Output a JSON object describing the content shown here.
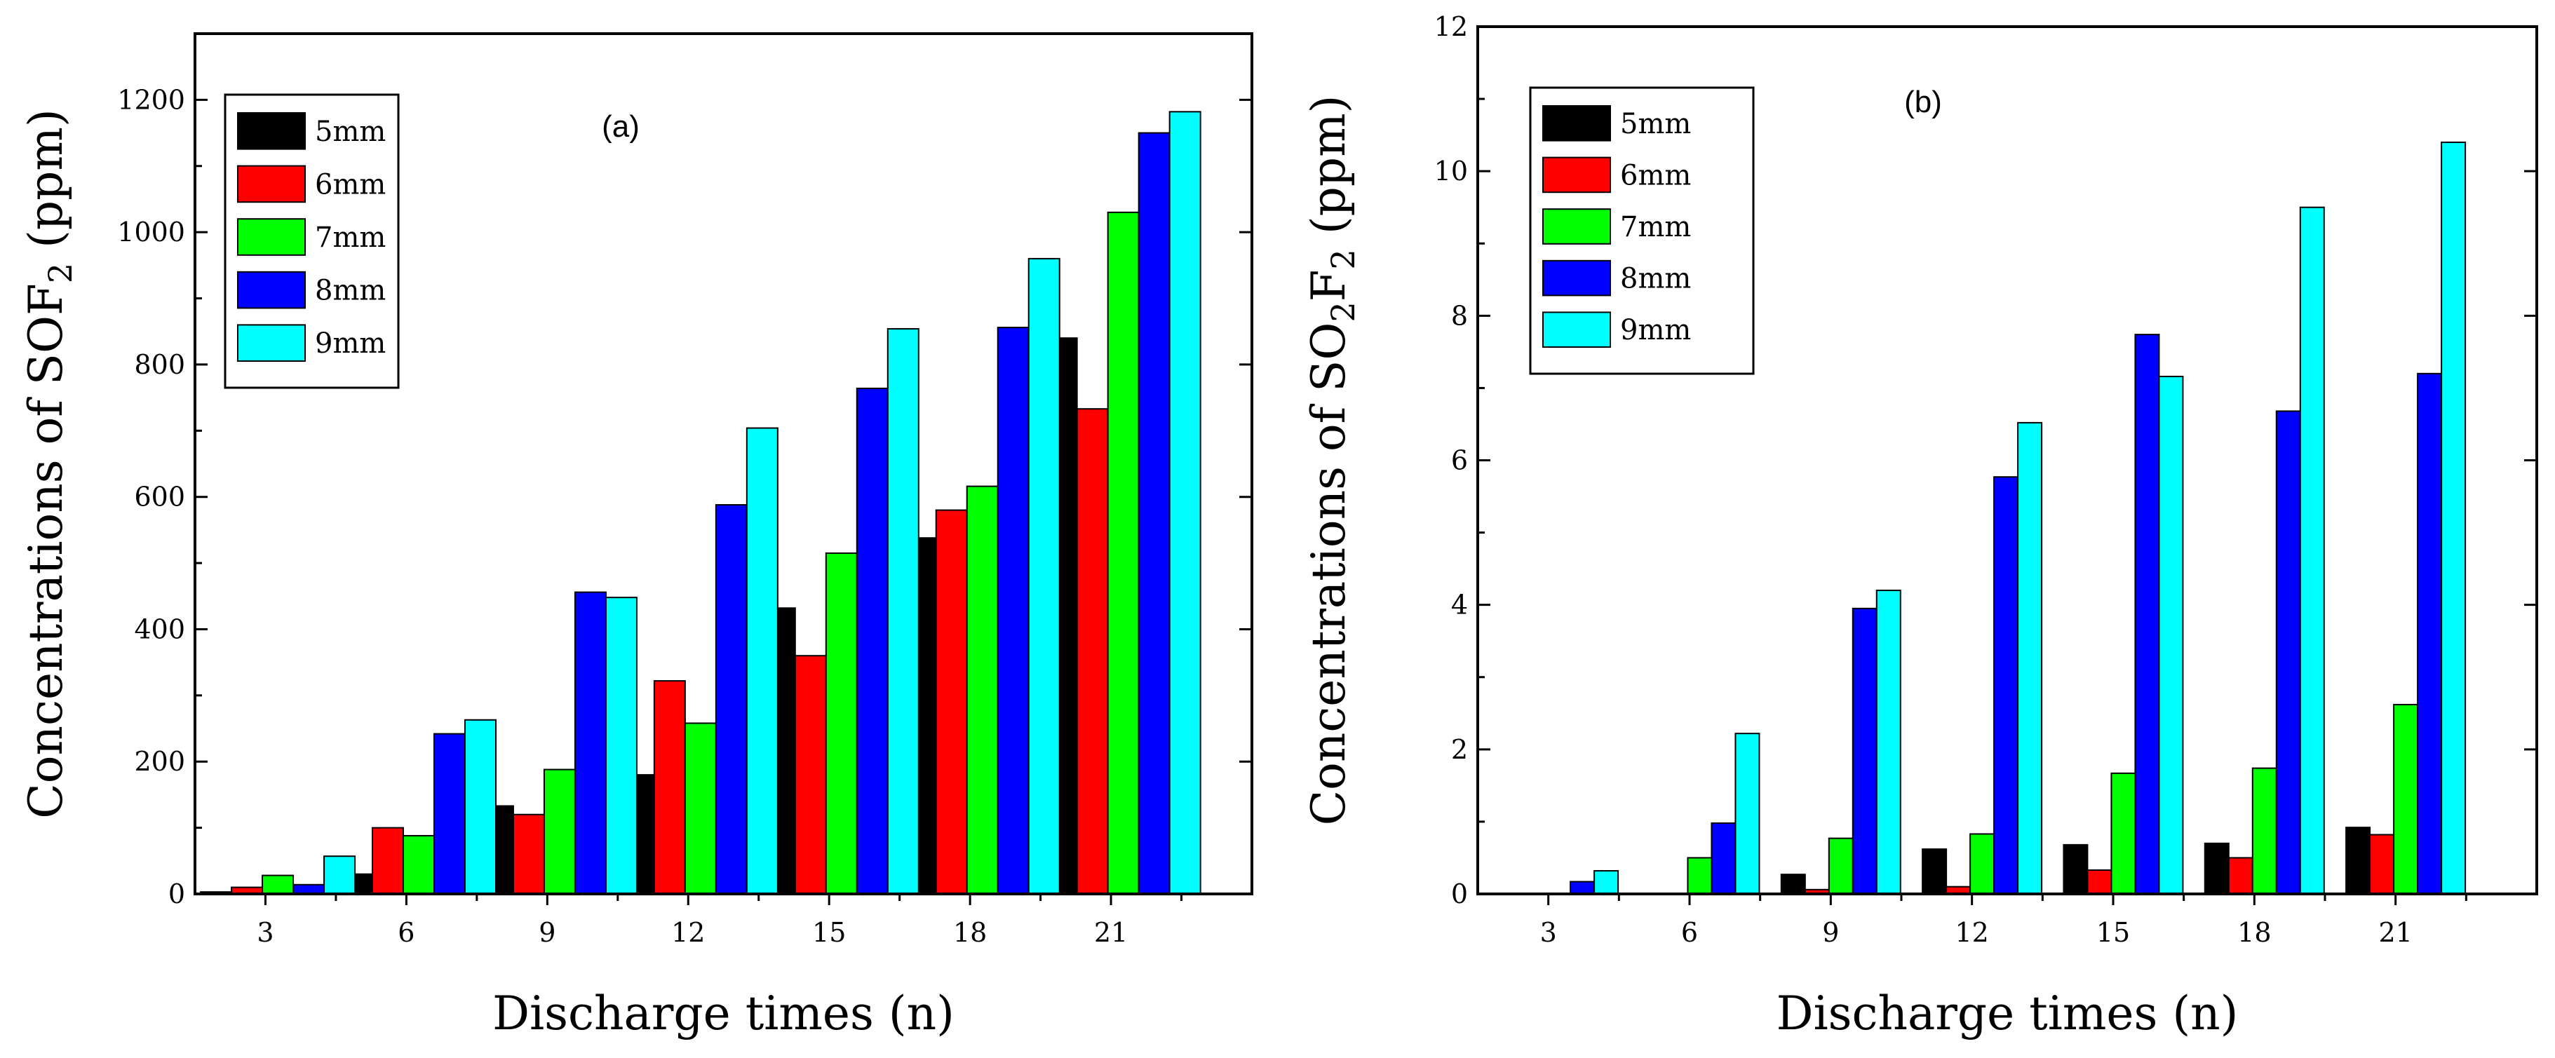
{
  "chart_data": [
    {
      "type": "bar",
      "panel_label": "(a)",
      "xlabel": "Discharge times (n)",
      "ylabel_prefix": "Concentrations of SOF",
      "ylabel_sub": "2",
      "ylabel_suffix": "  (ppm)",
      "categories": [
        "3",
        "6",
        "9",
        "12",
        "15",
        "18",
        "21"
      ],
      "ylim": [
        0,
        1300
      ],
      "yticks": [
        0,
        200,
        400,
        600,
        800,
        1000,
        1200
      ],
      "legend_position": "top-left",
      "grid": false,
      "series": [
        {
          "name": "5mm",
          "color": "#000000",
          "values": [
            3,
            30,
            133,
            180,
            432,
            538,
            840
          ]
        },
        {
          "name": "6mm",
          "color": "#ff0000",
          "values": [
            10,
            100,
            120,
            322,
            360,
            580,
            733
          ]
        },
        {
          "name": "7mm",
          "color": "#00ff00",
          "values": [
            28,
            88,
            188,
            258,
            515,
            616,
            1030
          ]
        },
        {
          "name": "8mm",
          "color": "#0000ff",
          "values": [
            14,
            242,
            456,
            588,
            764,
            856,
            1150
          ]
        },
        {
          "name": "9mm",
          "color": "#00ffff",
          "values": [
            57,
            263,
            448,
            704,
            854,
            960,
            1182
          ]
        }
      ]
    },
    {
      "type": "bar",
      "panel_label": "(b)",
      "xlabel": "Discharge times (n)",
      "ylabel_prefix": "Concentrations of SO",
      "ylabel_sub": "2",
      "ylabel_mid": "F",
      "ylabel_sub2": "2",
      "ylabel_suffix": "  (ppm)",
      "categories": [
        "3",
        "6",
        "9",
        "12",
        "15",
        "18",
        "21"
      ],
      "ylim": [
        0,
        12
      ],
      "yticks": [
        0,
        2,
        4,
        6,
        8,
        10,
        12
      ],
      "legend_position": "top-left",
      "grid": false,
      "series": [
        {
          "name": "5mm",
          "color": "#000000",
          "values": [
            0,
            0,
            0.27,
            0.62,
            0.68,
            0.7,
            0.92
          ]
        },
        {
          "name": "6mm",
          "color": "#ff0000",
          "values": [
            0,
            0,
            0.06,
            0.1,
            0.33,
            0.5,
            0.82
          ]
        },
        {
          "name": "7mm",
          "color": "#00ff00",
          "values": [
            0,
            0.5,
            0.77,
            0.83,
            1.67,
            1.74,
            2.62
          ]
        },
        {
          "name": "8mm",
          "color": "#0000ff",
          "values": [
            0.17,
            0.98,
            3.95,
            5.77,
            7.74,
            6.68,
            7.2
          ]
        },
        {
          "name": "9mm",
          "color": "#00ffff",
          "values": [
            0.32,
            2.22,
            4.2,
            6.52,
            7.16,
            9.5,
            10.4
          ]
        }
      ]
    }
  ]
}
